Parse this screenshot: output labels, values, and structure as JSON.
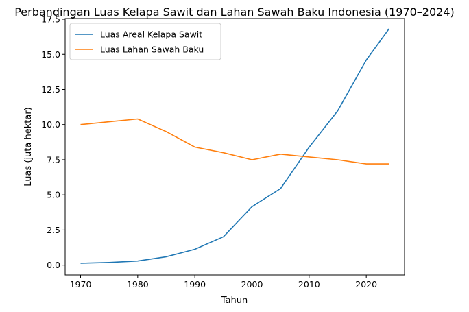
{
  "chart_data": {
    "type": "line",
    "title": "Perbandingan Luas Kelapa Sawit dan Lahan Sawah Baku Indonesia (1970–2024)",
    "xlabel": "Tahun",
    "ylabel": "Luas (juta hektar)",
    "xlim": [
      1967.3,
      2026.7
    ],
    "ylim": [
      -0.7,
      17.55
    ],
    "xticks": [
      1970,
      1980,
      1990,
      2000,
      2010,
      2020
    ],
    "yticks": [
      "0.0",
      "2.5",
      "5.0",
      "7.5",
      "10.0",
      "12.5",
      "15.0",
      "17.5"
    ],
    "grid": false,
    "legend_position": "upper-left",
    "series": [
      {
        "name": "Luas Areal Kelapa Sawit",
        "color": "#1f77b4",
        "x": [
          1970,
          1975,
          1980,
          1985,
          1990,
          1995,
          2000,
          2005,
          2010,
          2015,
          2020,
          2024
        ],
        "y": [
          0.13,
          0.19,
          0.29,
          0.6,
          1.13,
          2.02,
          4.16,
          5.45,
          8.39,
          10.98,
          14.6,
          16.83
        ]
      },
      {
        "name": "Luas Lahan Sawah Baku",
        "color": "#ff7f0e",
        "x": [
          1970,
          1975,
          1980,
          1985,
          1990,
          1995,
          2000,
          2005,
          2010,
          2015,
          2020,
          2024
        ],
        "y": [
          10.0,
          10.2,
          10.4,
          9.5,
          8.4,
          8.0,
          7.5,
          7.9,
          7.7,
          7.5,
          7.2,
          7.2
        ]
      }
    ]
  }
}
